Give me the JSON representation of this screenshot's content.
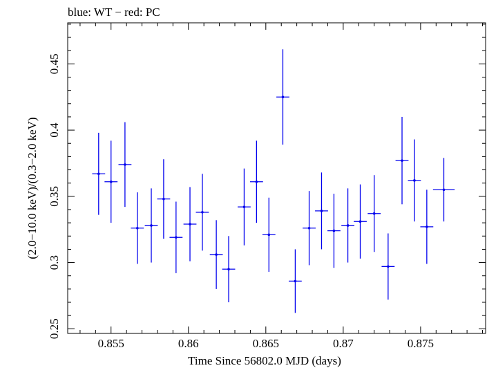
{
  "chart_data": {
    "type": "scatter",
    "title": "blue: WT − red: PC",
    "xlabel": "Time Since 56802.0 MJD (days)",
    "ylabel": "(2.0−10.0 keV)/(0.3−2.0 keV)",
    "xlim": [
      0.8522,
      0.8792
    ],
    "ylim": [
      0.2465,
      0.481
    ],
    "x_ticks": [
      0.855,
      0.86,
      0.865,
      0.87,
      0.875
    ],
    "x_tick_labels": [
      "0.855",
      "0.86",
      "0.865",
      "0.87",
      "0.875"
    ],
    "y_ticks": [
      0.25,
      0.3,
      0.35,
      0.4,
      0.45
    ],
    "y_tick_labels": [
      "0.25",
      "0.3",
      "0.35",
      "0.4",
      "0.45"
    ],
    "grid": false,
    "color": "#0000ee",
    "series": [
      {
        "points": [
          {
            "x": 0.8542,
            "xerr": 0.00042,
            "y": 0.367,
            "yerr": 0.031
          },
          {
            "x": 0.855,
            "xerr": 0.00042,
            "y": 0.361,
            "yerr": 0.031
          },
          {
            "x": 0.8559,
            "xerr": 0.00042,
            "y": 0.374,
            "yerr": 0.032
          },
          {
            "x": 0.8567,
            "xerr": 0.00042,
            "y": 0.326,
            "yerr": 0.027
          },
          {
            "x": 0.8576,
            "xerr": 0.00042,
            "y": 0.328,
            "yerr": 0.028
          },
          {
            "x": 0.8584,
            "xerr": 0.00042,
            "y": 0.348,
            "yerr": 0.03
          },
          {
            "x": 0.8592,
            "xerr": 0.00042,
            "y": 0.319,
            "yerr": 0.027
          },
          {
            "x": 0.8601,
            "xerr": 0.00042,
            "y": 0.329,
            "yerr": 0.028
          },
          {
            "x": 0.8609,
            "xerr": 0.00042,
            "y": 0.338,
            "yerr": 0.029
          },
          {
            "x": 0.8618,
            "xerr": 0.00042,
            "y": 0.306,
            "yerr": 0.026
          },
          {
            "x": 0.8626,
            "xerr": 0.00042,
            "y": 0.295,
            "yerr": 0.025
          },
          {
            "x": 0.8636,
            "xerr": 0.00042,
            "y": 0.342,
            "yerr": 0.029
          },
          {
            "x": 0.8644,
            "xerr": 0.00042,
            "y": 0.361,
            "yerr": 0.031
          },
          {
            "x": 0.8652,
            "xerr": 0.00042,
            "y": 0.321,
            "yerr": 0.028
          },
          {
            "x": 0.8661,
            "xerr": 0.00042,
            "y": 0.425,
            "yerr": 0.036
          },
          {
            "x": 0.8669,
            "xerr": 0.00042,
            "y": 0.286,
            "yerr": 0.024
          },
          {
            "x": 0.8678,
            "xerr": 0.00042,
            "y": 0.326,
            "yerr": 0.028
          },
          {
            "x": 0.8686,
            "xerr": 0.00042,
            "y": 0.339,
            "yerr": 0.029
          },
          {
            "x": 0.8694,
            "xerr": 0.00042,
            "y": 0.324,
            "yerr": 0.028
          },
          {
            "x": 0.8703,
            "xerr": 0.00042,
            "y": 0.328,
            "yerr": 0.028
          },
          {
            "x": 0.8711,
            "xerr": 0.00042,
            "y": 0.331,
            "yerr": 0.028
          },
          {
            "x": 0.872,
            "xerr": 0.00042,
            "y": 0.337,
            "yerr": 0.029
          },
          {
            "x": 0.8729,
            "xerr": 0.00042,
            "y": 0.297,
            "yerr": 0.025
          },
          {
            "x": 0.8738,
            "xerr": 0.00042,
            "y": 0.377,
            "yerr": 0.033
          },
          {
            "x": 0.8746,
            "xerr": 0.00042,
            "y": 0.362,
            "yerr": 0.031
          },
          {
            "x": 0.8754,
            "xerr": 0.00042,
            "y": 0.327,
            "yerr": 0.028
          },
          {
            "x": 0.8765,
            "xerr": 0.0007,
            "y": 0.355,
            "yerr": 0.024
          }
        ]
      }
    ]
  }
}
